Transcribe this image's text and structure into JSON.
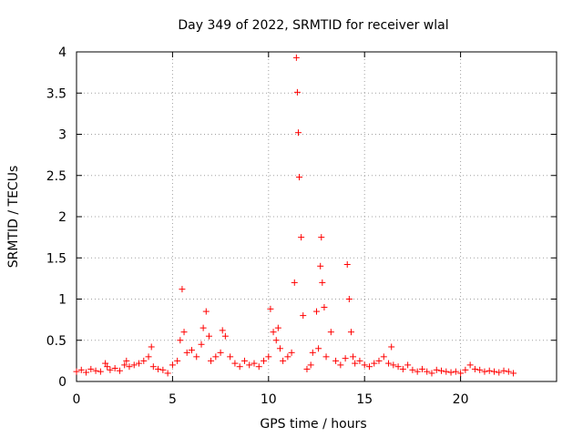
{
  "chart_data": {
    "type": "scatter",
    "title": "Day 349 of 2022, SRMTID for receiver wlal",
    "xlabel": "GPS time / hours",
    "ylabel": "SRMTID / TECUs",
    "xlim": [
      0,
      25
    ],
    "ylim": [
      0,
      4
    ],
    "xticks": [
      0,
      5,
      10,
      15,
      20
    ],
    "xtick_labels": [
      "0",
      "5",
      "10",
      "15",
      "20"
    ],
    "yticks": [
      0,
      0.5,
      1,
      1.5,
      2,
      2.5,
      3,
      3.5,
      4
    ],
    "ytick_labels": [
      "0",
      "0.5",
      "1",
      "1.5",
      "2",
      "2.5",
      "3",
      "3.5",
      "4"
    ],
    "grid": true,
    "marker": "+",
    "color": "#ff0000",
    "series": [
      {
        "name": "SRMTID",
        "x": [
          0.0,
          0.25,
          0.5,
          0.75,
          1.0,
          1.25,
          1.5,
          1.6,
          1.75,
          2.0,
          2.25,
          2.5,
          2.6,
          2.75,
          3.0,
          3.25,
          3.5,
          3.75,
          3.9,
          4.0,
          4.25,
          4.5,
          4.75,
          5.0,
          5.25,
          5.4,
          5.5,
          5.6,
          5.75,
          6.0,
          6.25,
          6.5,
          6.6,
          6.75,
          6.9,
          7.0,
          7.25,
          7.5,
          7.6,
          7.75,
          8.0,
          8.25,
          8.5,
          8.75,
          9.0,
          9.25,
          9.5,
          9.75,
          10.0,
          10.1,
          10.25,
          10.4,
          10.5,
          10.6,
          10.75,
          11.0,
          11.2,
          11.35,
          11.45,
          11.5,
          11.55,
          11.6,
          11.7,
          11.8,
          12.0,
          12.2,
          12.3,
          12.5,
          12.6,
          12.7,
          12.75,
          12.8,
          12.9,
          13.0,
          13.25,
          13.5,
          13.75,
          14.0,
          14.1,
          14.2,
          14.3,
          14.4,
          14.5,
          14.75,
          15.0,
          15.25,
          15.5,
          15.75,
          16.0,
          16.25,
          16.4,
          16.5,
          16.75,
          17.0,
          17.25,
          17.5,
          17.75,
          18.0,
          18.25,
          18.5,
          18.75,
          19.0,
          19.25,
          19.5,
          19.75,
          20.0,
          20.25,
          20.5,
          20.75,
          21.0,
          21.25,
          21.5,
          21.75,
          22.0,
          22.25,
          22.5,
          22.75
        ],
        "y": [
          0.12,
          0.14,
          0.11,
          0.15,
          0.13,
          0.12,
          0.22,
          0.18,
          0.14,
          0.16,
          0.13,
          0.2,
          0.25,
          0.18,
          0.2,
          0.22,
          0.25,
          0.3,
          0.42,
          0.18,
          0.15,
          0.14,
          0.1,
          0.2,
          0.25,
          0.5,
          1.12,
          0.6,
          0.35,
          0.38,
          0.3,
          0.45,
          0.65,
          0.85,
          0.55,
          0.25,
          0.3,
          0.35,
          0.62,
          0.55,
          0.3,
          0.22,
          0.18,
          0.25,
          0.2,
          0.22,
          0.18,
          0.25,
          0.3,
          0.88,
          0.6,
          0.5,
          0.65,
          0.4,
          0.25,
          0.3,
          0.35,
          1.2,
          3.93,
          3.51,
          3.02,
          2.48,
          1.75,
          0.8,
          0.15,
          0.2,
          0.35,
          0.85,
          0.4,
          1.4,
          1.75,
          1.2,
          0.9,
          0.3,
          0.6,
          0.25,
          0.2,
          0.28,
          1.42,
          1.0,
          0.6,
          0.3,
          0.22,
          0.25,
          0.2,
          0.18,
          0.22,
          0.25,
          0.3,
          0.22,
          0.42,
          0.2,
          0.18,
          0.15,
          0.2,
          0.14,
          0.12,
          0.15,
          0.12,
          0.1,
          0.14,
          0.13,
          0.12,
          0.11,
          0.12,
          0.1,
          0.14,
          0.2,
          0.15,
          0.14,
          0.12,
          0.13,
          0.12,
          0.11,
          0.13,
          0.12,
          0.1
        ]
      }
    ]
  }
}
